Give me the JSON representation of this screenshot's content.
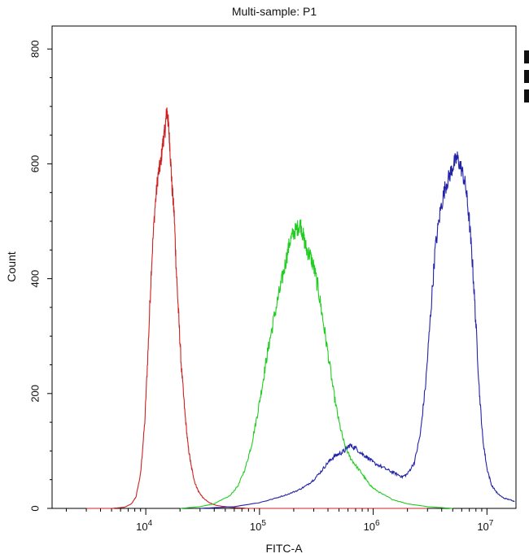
{
  "chart_data": {
    "type": "line",
    "title": "Multi-sample: P1",
    "xlabel": "FITC-A",
    "ylabel": "Count",
    "xscale": "log",
    "xlim": [
      1500,
      18000000
    ],
    "ylim": [
      0,
      840
    ],
    "x_ticks": [
      {
        "value": 10000,
        "base": "10",
        "exp": "4"
      },
      {
        "value": 100000,
        "base": "10",
        "exp": "5"
      },
      {
        "value": 1000000,
        "base": "10",
        "exp": "6"
      },
      {
        "value": 10000000,
        "base": "10",
        "exp": "7"
      }
    ],
    "y_ticks": [
      0,
      200,
      400,
      600,
      800
    ],
    "grid": false,
    "legend": "right (cropped swatches only)",
    "series": [
      {
        "color": "#cc2222",
        "points": [
          [
            3000,
            0
          ],
          [
            5000,
            0
          ],
          [
            6500,
            2
          ],
          [
            7500,
            8
          ],
          [
            8200,
            20
          ],
          [
            9000,
            60
          ],
          [
            9800,
            150
          ],
          [
            10500,
            280
          ],
          [
            11200,
            420
          ],
          [
            12000,
            520
          ],
          [
            12800,
            580
          ],
          [
            13500,
            600
          ],
          [
            14200,
            640
          ],
          [
            14800,
            660
          ],
          [
            15300,
            695
          ],
          [
            15800,
            670
          ],
          [
            16300,
            630
          ],
          [
            17000,
            560
          ],
          [
            17800,
            510
          ],
          [
            18500,
            420
          ],
          [
            19500,
            330
          ],
          [
            20500,
            250
          ],
          [
            22000,
            170
          ],
          [
            23500,
            110
          ],
          [
            25000,
            75
          ],
          [
            27000,
            45
          ],
          [
            29000,
            30
          ],
          [
            32000,
            18
          ],
          [
            36000,
            10
          ],
          [
            42000,
            5
          ],
          [
            55000,
            2
          ],
          [
            80000,
            0
          ],
          [
            150000,
            0
          ],
          [
            500000,
            0
          ],
          [
            3000000,
            0
          ]
        ]
      },
      {
        "color": "#22cc22",
        "points": [
          [
            20000,
            0
          ],
          [
            30000,
            3
          ],
          [
            40000,
            8
          ],
          [
            55000,
            22
          ],
          [
            65000,
            40
          ],
          [
            75000,
            70
          ],
          [
            85000,
            110
          ],
          [
            95000,
            160
          ],
          [
            105000,
            210
          ],
          [
            115000,
            260
          ],
          [
            125000,
            300
          ],
          [
            140000,
            350
          ],
          [
            155000,
            390
          ],
          [
            170000,
            430
          ],
          [
            185000,
            465
          ],
          [
            200000,
            480
          ],
          [
            215000,
            488
          ],
          [
            230000,
            495
          ],
          [
            245000,
            470
          ],
          [
            260000,
            450
          ],
          [
            280000,
            440
          ],
          [
            300000,
            420
          ],
          [
            330000,
            380
          ],
          [
            360000,
            330
          ],
          [
            400000,
            270
          ],
          [
            450000,
            200
          ],
          [
            500000,
            150
          ],
          [
            560000,
            110
          ],
          [
            620000,
            90
          ],
          [
            700000,
            75
          ],
          [
            800000,
            60
          ],
          [
            900000,
            45
          ],
          [
            1000000,
            35
          ],
          [
            1200000,
            25
          ],
          [
            1500000,
            15
          ],
          [
            2000000,
            8
          ],
          [
            3000000,
            3
          ],
          [
            5000000,
            0
          ]
        ]
      },
      {
        "color": "#2222aa",
        "points": [
          [
            30000,
            0
          ],
          [
            60000,
            3
          ],
          [
            100000,
            10
          ],
          [
            140000,
            18
          ],
          [
            180000,
            25
          ],
          [
            220000,
            32
          ],
          [
            260000,
            40
          ],
          [
            300000,
            50
          ],
          [
            350000,
            65
          ],
          [
            400000,
            80
          ],
          [
            450000,
            90
          ],
          [
            500000,
            95
          ],
          [
            560000,
            100
          ],
          [
            620000,
            110
          ],
          [
            700000,
            105
          ],
          [
            800000,
            95
          ],
          [
            900000,
            88
          ],
          [
            1000000,
            80
          ],
          [
            1200000,
            72
          ],
          [
            1400000,
            65
          ],
          [
            1600000,
            60
          ],
          [
            1800000,
            55
          ],
          [
            2000000,
            60
          ],
          [
            2300000,
            80
          ],
          [
            2600000,
            130
          ],
          [
            2900000,
            220
          ],
          [
            3200000,
            340
          ],
          [
            3500000,
            450
          ],
          [
            3900000,
            520
          ],
          [
            4300000,
            560
          ],
          [
            4700000,
            580
          ],
          [
            5100000,
            600
          ],
          [
            5500000,
            610
          ],
          [
            6000000,
            590
          ],
          [
            6500000,
            560
          ],
          [
            7000000,
            500
          ],
          [
            7500000,
            420
          ],
          [
            8000000,
            320
          ],
          [
            8600000,
            200
          ],
          [
            9200000,
            120
          ],
          [
            10000000,
            70
          ],
          [
            11000000,
            40
          ],
          [
            12500000,
            25
          ],
          [
            14000000,
            18
          ],
          [
            16000000,
            15
          ],
          [
            17500000,
            12
          ]
        ]
      }
    ]
  }
}
